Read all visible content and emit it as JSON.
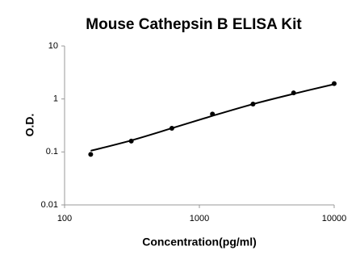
{
  "chart_data": {
    "type": "scatter",
    "title": "Mouse Cathepsin B ELISA Kit",
    "x_label": "Concentration(pg/ml)",
    "y_label": "O.D.",
    "x": [
      156.25,
      312.5,
      625,
      1250,
      2500,
      5000,
      10000
    ],
    "series": [
      {
        "style": "markers",
        "color": "#000000",
        "values": [
          0.09,
          0.16,
          0.28,
          0.52,
          0.8,
          1.3,
          1.95
        ]
      },
      {
        "style": "line",
        "color": "#000000",
        "values": [
          0.105,
          0.165,
          0.28,
          0.48,
          0.8,
          1.25,
          1.9
        ]
      }
    ],
    "xlog": true,
    "ylog": true,
    "xlim": [
      100,
      10000
    ],
    "ylim": [
      0.01,
      10
    ],
    "xticks": [
      100,
      1000,
      10000
    ],
    "yticks": [
      0.01,
      0.1,
      1,
      10
    ],
    "grid": false
  }
}
